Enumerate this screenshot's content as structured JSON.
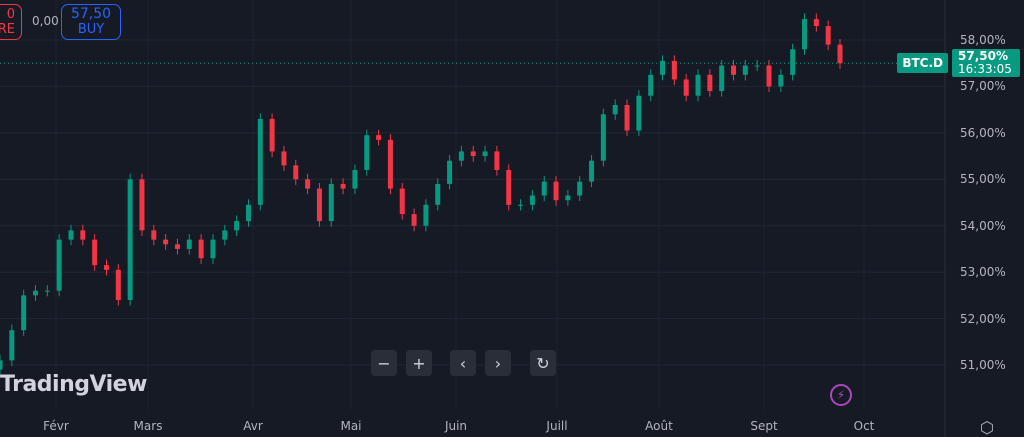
{
  "trade": {
    "sell_price": "0",
    "sell_label": "RE",
    "spread": "0,00",
    "buy_price": "57,50",
    "buy_label": "BUY"
  },
  "logo": "TradingView",
  "symbol": "BTC.D",
  "last_price": "57,50%",
  "countdown": "16:33:05",
  "nav": {
    "zoom_out": "−",
    "zoom_in": "+",
    "left": "‹",
    "right": "›",
    "reset": "↻"
  },
  "icons": {
    "alert": "lightning-icon",
    "settings": "hexagon-settings-icon"
  },
  "colors": {
    "up": "#089981",
    "down": "#f23645",
    "background": "#161a25",
    "buy": "#2962ff",
    "sell": "#f23645",
    "alert": "#ab47bc"
  },
  "chart_data": {
    "type": "candlestick",
    "ylim": [
      50.5,
      58.9
    ],
    "y_ticks": [
      "58,00%",
      "57,00%",
      "56,00%",
      "55,00%",
      "54,00%",
      "53,00%",
      "52,00%",
      "51,00%"
    ],
    "y_tick_values": [
      58,
      57,
      56,
      55,
      54,
      53,
      52,
      51
    ],
    "x_ticks": [
      "Févr",
      "Mars",
      "Avr",
      "Mai",
      "Juin",
      "Juill",
      "Août",
      "Sept",
      "Oct"
    ],
    "grid": true,
    "closes": [
      51.1,
      51.75,
      52.5,
      52.6,
      52.6,
      53.7,
      53.9,
      53.7,
      53.15,
      53.05,
      52.4,
      55.0,
      53.9,
      53.7,
      53.6,
      53.5,
      53.7,
      53.3,
      53.7,
      53.9,
      54.1,
      54.45,
      56.3,
      55.6,
      55.3,
      55.0,
      54.8,
      54.1,
      54.9,
      54.8,
      55.2,
      55.95,
      55.85,
      54.8,
      54.25,
      54.0,
      54.45,
      54.9,
      55.4,
      55.6,
      55.5,
      55.6,
      55.2,
      54.45,
      54.45,
      54.65,
      54.95,
      54.55,
      54.65,
      54.95,
      55.4,
      56.4,
      56.6,
      56.05,
      56.8,
      57.25,
      57.55,
      57.15,
      56.8,
      57.25,
      56.9,
      57.45,
      57.25,
      57.45,
      57.45,
      57.0,
      57.25,
      57.8,
      58.45,
      58.3,
      57.9,
      57.5
    ],
    "last_value": 57.5
  }
}
